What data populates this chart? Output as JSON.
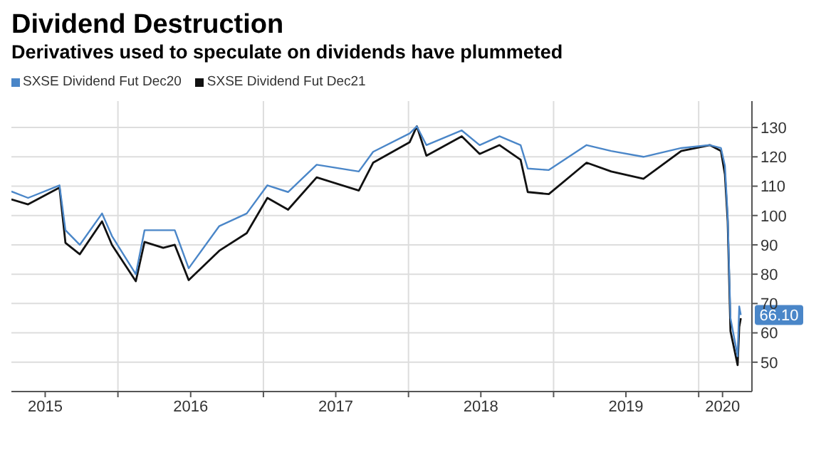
{
  "chart_data": {
    "type": "line",
    "title": "Dividend Destruction",
    "subtitle": "Derivatives used to speculate on dividends have plummeted",
    "x": [
      "2015-04-08",
      "2015-05-20",
      "2015-08-07",
      "2015-08-22",
      "2015-09-27",
      "2015-11-22",
      "2015-12-17",
      "2016-02-15",
      "2016-03-08",
      "2016-04-24",
      "2016-05-23",
      "2016-06-27",
      "2016-09-12",
      "2016-11-20",
      "2017-01-11",
      "2017-03-04",
      "2017-05-15",
      "2017-08-29",
      "2017-10-04",
      "2018-01-04",
      "2018-01-22",
      "2018-02-15",
      "2018-05-15",
      "2018-06-29",
      "2018-08-18",
      "2018-10-10",
      "2018-10-28",
      "2018-12-20",
      "2019-03-25",
      "2019-05-26",
      "2019-08-15",
      "2019-11-18",
      "2020-01-29",
      "2020-02-26",
      "2020-03-07",
      "2020-03-14",
      "2020-03-21",
      "2020-04-08",
      "2020-04-12",
      "2020-04-16"
    ],
    "series": [
      {
        "name": "SXSE Dividend Fut Dec20",
        "color": "#4a86c8",
        "values": [
          108.2,
          106,
          110.3,
          95,
          90,
          100.7,
          93,
          80,
          95,
          95,
          95,
          82,
          96.4,
          100.7,
          110.3,
          108,
          117.3,
          115,
          121.7,
          128,
          130.4,
          124,
          129,
          124,
          127,
          124,
          116,
          115.5,
          124,
          122,
          120,
          123,
          124,
          123,
          117,
          100,
          65,
          52,
          69,
          66.1
        ]
      },
      {
        "name": "SXSE Dividend Fut Dec21",
        "color": "#111111",
        "values": [
          105.5,
          103.8,
          109.5,
          90.7,
          86.8,
          98,
          90,
          77.6,
          91,
          89,
          90,
          78,
          88,
          94,
          106,
          102,
          113,
          108.5,
          118,
          125,
          130.4,
          120.4,
          127,
          121,
          124,
          119,
          108,
          107.3,
          118,
          115,
          112.5,
          122,
          124,
          122,
          114,
          98,
          60.6,
          49,
          62,
          65
        ]
      }
    ],
    "xlim": [
      "2015-04-08",
      "2020-05-14"
    ],
    "xticks": [
      {
        "value": "2015-07-02",
        "label": "2015"
      },
      {
        "value": "2016-01-01",
        "label": null
      },
      {
        "value": "2016-07-02",
        "label": "2016"
      },
      {
        "value": "2017-01-01",
        "label": null
      },
      {
        "value": "2017-07-02",
        "label": "2017"
      },
      {
        "value": "2018-01-01",
        "label": null
      },
      {
        "value": "2018-07-02",
        "label": "2018"
      },
      {
        "value": "2019-01-01",
        "label": null
      },
      {
        "value": "2019-07-02",
        "label": "2019"
      },
      {
        "value": "2020-01-01",
        "label": null
      },
      {
        "value": "2020-03-01",
        "label": "2020"
      }
    ],
    "ylim": [
      40,
      139
    ],
    "yticks": [
      50,
      60,
      70,
      80,
      90,
      100,
      110,
      120,
      130
    ],
    "annotations": [
      {
        "text": "66.10",
        "x": "2020-04-16",
        "y": 66.1
      }
    ],
    "grid": true,
    "legend": "top left",
    "marker": "none",
    "line_style": "solid"
  }
}
